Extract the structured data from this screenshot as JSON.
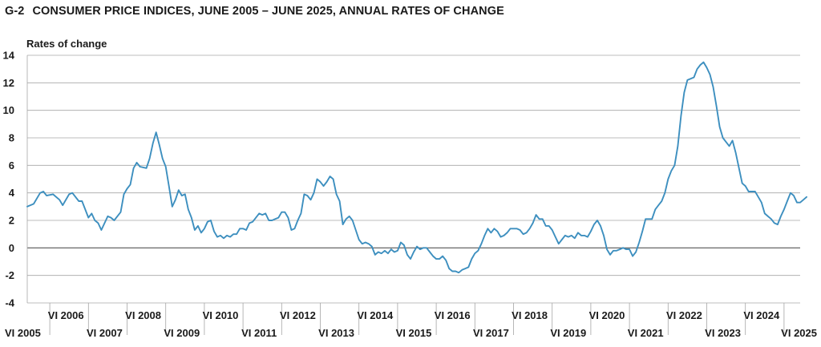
{
  "header": {
    "figure_number": "G-2",
    "title": "CONSUMER PRICE INDICES, JUNE 2005 – JUNE 2025, ANNUAL RATES OF CHANGE"
  },
  "colors": {
    "line": "#3d8fbf",
    "grid": "#a6a6a6",
    "zero": "#555555"
  },
  "chart_data": {
    "type": "line",
    "title": "CONSUMER PRICE INDICES, JUNE 2005 – JUNE 2025, ANNUAL RATES OF CHANGE",
    "ylabel": "Rates of change",
    "ylim": [
      -4,
      14
    ],
    "yticks": [
      -4,
      -2,
      0,
      2,
      4,
      6,
      8,
      10,
      12,
      14
    ],
    "xlim": [
      2005.417,
      2025.417
    ],
    "xticks_bottom": [
      {
        "x": 2005.417,
        "label": "VI 2005"
      },
      {
        "x": 2007.417,
        "label": "VI 2007"
      },
      {
        "x": 2009.417,
        "label": "VI 2009"
      },
      {
        "x": 2011.417,
        "label": "VI 2011"
      },
      {
        "x": 2013.417,
        "label": "VI 2013"
      },
      {
        "x": 2015.417,
        "label": "VI 2015"
      },
      {
        "x": 2017.417,
        "label": "VI 2017"
      },
      {
        "x": 2019.417,
        "label": "VI 2019"
      },
      {
        "x": 2021.417,
        "label": "VI 2021"
      },
      {
        "x": 2023.417,
        "label": "VI 2023"
      },
      {
        "x": 2025.417,
        "label": "VI 2025"
      }
    ],
    "xticks_top": [
      {
        "x": 2006.417,
        "label": "VI 2006"
      },
      {
        "x": 2008.417,
        "label": "VI 2008"
      },
      {
        "x": 2010.417,
        "label": "VI 2010"
      },
      {
        "x": 2012.417,
        "label": "VI 2012"
      },
      {
        "x": 2014.417,
        "label": "VI 2014"
      },
      {
        "x": 2016.417,
        "label": "VI 2016"
      },
      {
        "x": 2018.417,
        "label": "VI 2018"
      },
      {
        "x": 2020.417,
        "label": "VI 2020"
      },
      {
        "x": 2022.417,
        "label": "VI 2022"
      },
      {
        "x": 2024.417,
        "label": "VI 2024"
      }
    ],
    "grid": true,
    "series": [
      {
        "values": [
          [
            2005.417,
            3.0
          ],
          [
            2005.583,
            3.2
          ],
          [
            2005.75,
            4.0
          ],
          [
            2005.833,
            4.1
          ],
          [
            2005.917,
            3.8
          ],
          [
            2006.083,
            3.9
          ],
          [
            2006.25,
            3.5
          ],
          [
            2006.333,
            3.1
          ],
          [
            2006.5,
            3.9
          ],
          [
            2006.583,
            4.0
          ],
          [
            2006.75,
            3.4
          ],
          [
            2006.833,
            3.4
          ],
          [
            2007.0,
            2.2
          ],
          [
            2007.083,
            2.5
          ],
          [
            2007.167,
            2.0
          ],
          [
            2007.25,
            1.8
          ],
          [
            2007.333,
            1.3
          ],
          [
            2007.5,
            2.3
          ],
          [
            2007.583,
            2.2
          ],
          [
            2007.667,
            2.0
          ],
          [
            2007.833,
            2.6
          ],
          [
            2007.917,
            3.9
          ],
          [
            2008.0,
            4.3
          ],
          [
            2008.083,
            4.6
          ],
          [
            2008.167,
            5.8
          ],
          [
            2008.25,
            6.2
          ],
          [
            2008.333,
            5.9
          ],
          [
            2008.5,
            5.8
          ],
          [
            2008.583,
            6.5
          ],
          [
            2008.667,
            7.6
          ],
          [
            2008.75,
            8.4
          ],
          [
            2008.833,
            7.5
          ],
          [
            2008.917,
            6.5
          ],
          [
            2009.0,
            5.9
          ],
          [
            2009.083,
            4.5
          ],
          [
            2009.167,
            3.0
          ],
          [
            2009.25,
            3.5
          ],
          [
            2009.333,
            4.2
          ],
          [
            2009.417,
            3.8
          ],
          [
            2009.5,
            3.9
          ],
          [
            2009.583,
            2.8
          ],
          [
            2009.667,
            2.2
          ],
          [
            2009.75,
            1.3
          ],
          [
            2009.833,
            1.6
          ],
          [
            2009.917,
            1.1
          ],
          [
            2010.0,
            1.4
          ],
          [
            2010.083,
            1.9
          ],
          [
            2010.167,
            2.0
          ],
          [
            2010.25,
            1.2
          ],
          [
            2010.333,
            0.8
          ],
          [
            2010.417,
            0.9
          ],
          [
            2010.5,
            0.7
          ],
          [
            2010.583,
            0.9
          ],
          [
            2010.667,
            0.8
          ],
          [
            2010.75,
            1.0
          ],
          [
            2010.833,
            1.0
          ],
          [
            2010.917,
            1.4
          ],
          [
            2011.0,
            1.4
          ],
          [
            2011.083,
            1.3
          ],
          [
            2011.167,
            1.8
          ],
          [
            2011.25,
            1.9
          ],
          [
            2011.333,
            2.2
          ],
          [
            2011.417,
            2.5
          ],
          [
            2011.5,
            2.4
          ],
          [
            2011.583,
            2.5
          ],
          [
            2011.667,
            2.0
          ],
          [
            2011.75,
            2.0
          ],
          [
            2011.833,
            2.1
          ],
          [
            2011.917,
            2.2
          ],
          [
            2012.0,
            2.6
          ],
          [
            2012.083,
            2.6
          ],
          [
            2012.167,
            2.2
          ],
          [
            2012.25,
            1.3
          ],
          [
            2012.333,
            1.4
          ],
          [
            2012.417,
            2.0
          ],
          [
            2012.5,
            2.5
          ],
          [
            2012.583,
            3.9
          ],
          [
            2012.667,
            3.8
          ],
          [
            2012.75,
            3.5
          ],
          [
            2012.833,
            4.0
          ],
          [
            2012.917,
            5.0
          ],
          [
            2013.0,
            4.8
          ],
          [
            2013.083,
            4.5
          ],
          [
            2013.167,
            4.8
          ],
          [
            2013.25,
            5.2
          ],
          [
            2013.333,
            5.0
          ],
          [
            2013.417,
            3.9
          ],
          [
            2013.5,
            3.4
          ],
          [
            2013.583,
            1.7
          ],
          [
            2013.667,
            2.1
          ],
          [
            2013.75,
            2.3
          ],
          [
            2013.833,
            2.0
          ],
          [
            2013.917,
            1.3
          ],
          [
            2014.0,
            0.6
          ],
          [
            2014.083,
            0.3
          ],
          [
            2014.167,
            0.4
          ],
          [
            2014.25,
            0.3
          ],
          [
            2014.333,
            0.1
          ],
          [
            2014.417,
            -0.5
          ],
          [
            2014.5,
            -0.3
          ],
          [
            2014.583,
            -0.4
          ],
          [
            2014.667,
            -0.2
          ],
          [
            2014.75,
            -0.4
          ],
          [
            2014.833,
            -0.1
          ],
          [
            2014.917,
            -0.3
          ],
          [
            2015.0,
            -0.2
          ],
          [
            2015.083,
            0.4
          ],
          [
            2015.167,
            0.2
          ],
          [
            2015.25,
            -0.5
          ],
          [
            2015.333,
            -0.8
          ],
          [
            2015.417,
            -0.3
          ],
          [
            2015.5,
            0.1
          ],
          [
            2015.583,
            -0.1
          ],
          [
            2015.667,
            0.0
          ],
          [
            2015.75,
            0.0
          ],
          [
            2015.833,
            -0.3
          ],
          [
            2015.917,
            -0.6
          ],
          [
            2016.0,
            -0.8
          ],
          [
            2016.083,
            -0.8
          ],
          [
            2016.167,
            -0.6
          ],
          [
            2016.25,
            -0.9
          ],
          [
            2016.333,
            -1.5
          ],
          [
            2016.417,
            -1.7
          ],
          [
            2016.5,
            -1.7
          ],
          [
            2016.583,
            -1.8
          ],
          [
            2016.667,
            -1.6
          ],
          [
            2016.75,
            -1.5
          ],
          [
            2016.833,
            -1.4
          ],
          [
            2016.917,
            -0.8
          ],
          [
            2017.0,
            -0.4
          ],
          [
            2017.083,
            -0.2
          ],
          [
            2017.167,
            0.3
          ],
          [
            2017.25,
            0.9
          ],
          [
            2017.333,
            1.4
          ],
          [
            2017.417,
            1.1
          ],
          [
            2017.5,
            1.4
          ],
          [
            2017.583,
            1.2
          ],
          [
            2017.667,
            0.8
          ],
          [
            2017.75,
            0.9
          ],
          [
            2017.833,
            1.1
          ],
          [
            2017.917,
            1.4
          ],
          [
            2018.0,
            1.4
          ],
          [
            2018.083,
            1.4
          ],
          [
            2018.167,
            1.3
          ],
          [
            2018.25,
            1.0
          ],
          [
            2018.333,
            1.1
          ],
          [
            2018.417,
            1.4
          ],
          [
            2018.5,
            1.8
          ],
          [
            2018.583,
            2.4
          ],
          [
            2018.667,
            2.1
          ],
          [
            2018.75,
            2.1
          ],
          [
            2018.833,
            1.6
          ],
          [
            2018.917,
            1.6
          ],
          [
            2019.0,
            1.3
          ],
          [
            2019.083,
            0.8
          ],
          [
            2019.167,
            0.3
          ],
          [
            2019.25,
            0.6
          ],
          [
            2019.333,
            0.9
          ],
          [
            2019.417,
            0.8
          ],
          [
            2019.5,
            0.9
          ],
          [
            2019.583,
            0.7
          ],
          [
            2019.667,
            1.1
          ],
          [
            2019.75,
            0.9
          ],
          [
            2019.833,
            0.9
          ],
          [
            2019.917,
            0.8
          ],
          [
            2020.0,
            1.2
          ],
          [
            2020.083,
            1.7
          ],
          [
            2020.167,
            2.0
          ],
          [
            2020.25,
            1.6
          ],
          [
            2020.333,
            0.9
          ],
          [
            2020.417,
            -0.1
          ],
          [
            2020.5,
            -0.5
          ],
          [
            2020.583,
            -0.2
          ],
          [
            2020.667,
            -0.2
          ],
          [
            2020.75,
            -0.1
          ],
          [
            2020.833,
            0.0
          ],
          [
            2020.917,
            -0.1
          ],
          [
            2021.0,
            -0.1
          ],
          [
            2021.083,
            -0.6
          ],
          [
            2021.167,
            -0.3
          ],
          [
            2021.25,
            0.4
          ],
          [
            2021.333,
            1.2
          ],
          [
            2021.417,
            2.1
          ],
          [
            2021.5,
            2.1
          ],
          [
            2021.583,
            2.1
          ],
          [
            2021.667,
            2.8
          ],
          [
            2021.75,
            3.1
          ],
          [
            2021.833,
            3.4
          ],
          [
            2021.917,
            4.0
          ],
          [
            2022.0,
            5.0
          ],
          [
            2022.083,
            5.6
          ],
          [
            2022.167,
            6.0
          ],
          [
            2022.25,
            7.4
          ],
          [
            2022.333,
            9.6
          ],
          [
            2022.417,
            11.3
          ],
          [
            2022.5,
            12.2
          ],
          [
            2022.583,
            12.3
          ],
          [
            2022.667,
            12.4
          ],
          [
            2022.75,
            13.0
          ],
          [
            2022.833,
            13.3
          ],
          [
            2022.917,
            13.5
          ],
          [
            2023.0,
            13.1
          ],
          [
            2023.083,
            12.6
          ],
          [
            2023.167,
            11.7
          ],
          [
            2023.25,
            10.3
          ],
          [
            2023.333,
            8.8
          ],
          [
            2023.417,
            8.0
          ],
          [
            2023.5,
            7.7
          ],
          [
            2023.583,
            7.4
          ],
          [
            2023.667,
            7.8
          ],
          [
            2023.75,
            6.9
          ],
          [
            2023.833,
            5.8
          ],
          [
            2023.917,
            4.7
          ],
          [
            2024.0,
            4.5
          ],
          [
            2024.083,
            4.1
          ],
          [
            2024.167,
            4.1
          ],
          [
            2024.25,
            4.1
          ],
          [
            2024.333,
            3.7
          ],
          [
            2024.417,
            3.3
          ],
          [
            2024.5,
            2.5
          ],
          [
            2024.583,
            2.3
          ],
          [
            2024.667,
            2.1
          ],
          [
            2024.75,
            1.8
          ],
          [
            2024.833,
            1.7
          ],
          [
            2024.917,
            2.3
          ],
          [
            2025.0,
            2.8
          ],
          [
            2025.083,
            3.4
          ],
          [
            2025.167,
            4.0
          ],
          [
            2025.25,
            3.8
          ],
          [
            2025.333,
            3.3
          ],
          [
            2025.417,
            3.3
          ],
          [
            2025.5,
            3.5
          ],
          [
            2025.583,
            3.7
          ]
        ]
      }
    ]
  }
}
